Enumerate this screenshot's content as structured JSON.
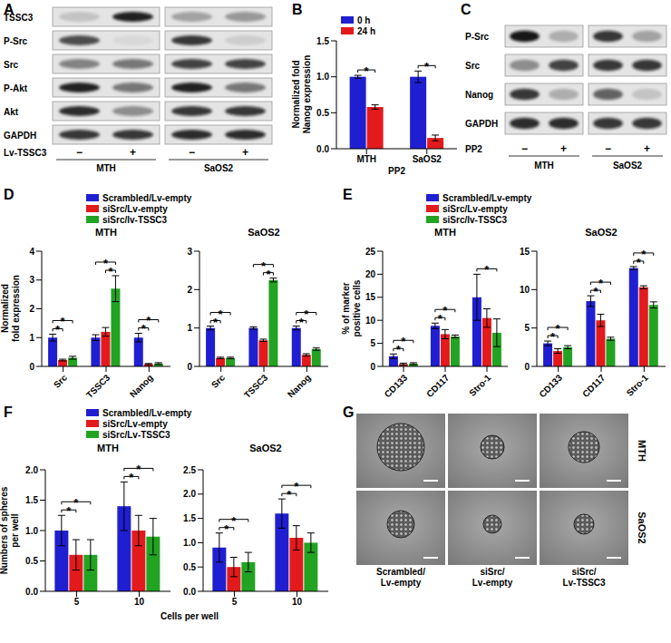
{
  "blots": [
    {
      "panel": "A",
      "rows": [
        "TSSC3",
        "P-Src",
        "Src",
        "P-Akt",
        "Akt",
        "GAPDH"
      ],
      "treatment": "Lv-TSSC3",
      "lanes": [
        "−",
        "+",
        "−",
        "+"
      ],
      "groups": [
        "MTH",
        "SaOS2"
      ],
      "band_intensity": [
        [
          0.15,
          0.9,
          0.3,
          0.35
        ],
        [
          0.7,
          0.05,
          0.8,
          0.1
        ],
        [
          0.45,
          0.5,
          0.75,
          0.75
        ],
        [
          0.9,
          0.5,
          0.9,
          0.5
        ],
        [
          0.85,
          0.4,
          0.8,
          0.8
        ],
        [
          0.8,
          0.8,
          0.85,
          0.85
        ]
      ]
    },
    {
      "panel": "C",
      "rows": [
        "P-Src",
        "Src",
        "Nanog",
        "GAPDH"
      ],
      "treatment": "PP2",
      "lanes": [
        "−",
        "+",
        "−",
        "+"
      ],
      "groups": [
        "MTH",
        "SaOS2"
      ],
      "band_intensity": [
        [
          0.95,
          0.25,
          0.8,
          0.3
        ],
        [
          0.4,
          0.75,
          0.8,
          0.8
        ],
        [
          0.8,
          0.25,
          0.6,
          0.15
        ],
        [
          0.85,
          0.85,
          0.8,
          0.8
        ]
      ]
    }
  ],
  "chart_data": [
    {
      "type": "bar",
      "panel": "B",
      "categories": [
        "MTH",
        "SaOS2"
      ],
      "x_label": "PP2",
      "y_label": [
        "Normalized fold",
        "Nanog expression"
      ],
      "series": [
        {
          "name": "0 h",
          "color": "#1f1fd1",
          "values": [
            1,
            1
          ],
          "errors": [
            0.02,
            0.08
          ]
        },
        {
          "name": "24 h",
          "color": "#e31a1c",
          "values": [
            0.58,
            0.15
          ],
          "errors": [
            0.03,
            0.04
          ]
        }
      ],
      "ylim": [
        0,
        1.5
      ],
      "yticks": [
        {
          "value": 0,
          "label": "0.0"
        },
        0.5,
        {
          "value": 1,
          "label": "1.0"
        },
        1.5
      ],
      "legend": "top-left",
      "significance": [
        {
          "category": 0,
          "from": 0,
          "to": 1,
          "label": "*"
        },
        {
          "category": 1,
          "from": 0,
          "to": 1,
          "label": "*"
        }
      ]
    },
    {
      "type": "bar",
      "panel": "D",
      "title": "MTH",
      "categories": [
        "Src",
        "TSSC3",
        "Nanog"
      ],
      "y_label": [
        "Normalized",
        "fold expression"
      ],
      "series": [
        {
          "name": "Scrambled/Lv-empty",
          "color": "#1f1fd1",
          "values": [
            1,
            1,
            1
          ],
          "errors": [
            0.12,
            0.1,
            0.15
          ]
        },
        {
          "name": "siSrc/Lv-empty",
          "color": "#e31a1c",
          "values": [
            0.22,
            1.2,
            0.08
          ],
          "errors": [
            0.03,
            0.15,
            0.02
          ]
        },
        {
          "name": "siSrc/lv-TSSC3",
          "color": "#22a322",
          "values": [
            0.3,
            2.7,
            0.1
          ],
          "errors": [
            0.05,
            0.45,
            0.03
          ]
        }
      ],
      "ylim": [
        0,
        4
      ],
      "yticks": [
        0,
        1,
        2,
        3,
        4
      ],
      "legend": "top",
      "significance": [
        {
          "category": 0,
          "from": 0,
          "to": 1,
          "label": "*"
        },
        {
          "category": 0,
          "from": 0,
          "to": 2,
          "label": "*"
        },
        {
          "category": 1,
          "from": 1,
          "to": 2,
          "label": "*"
        },
        {
          "category": 1,
          "from": 0,
          "to": 2,
          "label": "*"
        },
        {
          "category": 2,
          "from": 0,
          "to": 1,
          "label": "*"
        },
        {
          "category": 2,
          "from": 0,
          "to": 2,
          "label": "*"
        }
      ]
    },
    {
      "type": "bar",
      "panel": "D",
      "title": "SaOS2",
      "categories": [
        "Src",
        "TSSC3",
        "Nanog"
      ],
      "series": [
        {
          "name": "Scrambled/Lv-empty",
          "color": "#1f1fd1",
          "values": [
            1,
            1,
            1
          ],
          "errors": [
            0.05,
            0.03,
            0.05
          ]
        },
        {
          "name": "siSrc/Lv-empty",
          "color": "#e31a1c",
          "values": [
            0.22,
            0.68,
            0.3
          ],
          "errors": [
            0.02,
            0.03,
            0.03
          ]
        },
        {
          "name": "siSrc/lv-TSSC3",
          "color": "#22a322",
          "values": [
            0.22,
            2.25,
            0.45
          ],
          "errors": [
            0.02,
            0.05,
            0.03
          ]
        }
      ],
      "ylim": [
        0,
        3
      ],
      "yticks": [
        0,
        1,
        2,
        3
      ],
      "significance": [
        {
          "category": 0,
          "from": 0,
          "to": 1,
          "label": "*"
        },
        {
          "category": 0,
          "from": 0,
          "to": 2,
          "label": "*"
        },
        {
          "category": 1,
          "from": 1,
          "to": 2,
          "label": "*"
        },
        {
          "category": 1,
          "from": 0,
          "to": 2,
          "label": "*"
        },
        {
          "category": 2,
          "from": 0,
          "to": 1,
          "label": "*"
        },
        {
          "category": 2,
          "from": 0,
          "to": 2,
          "label": "*"
        }
      ]
    },
    {
      "type": "bar",
      "panel": "E",
      "title": "MTH",
      "categories": [
        "CD133",
        "CD117",
        "Stro-1"
      ],
      "y_label": [
        "% of marker",
        "positive cells"
      ],
      "series": [
        {
          "name": "Scrambled/Lv-empty",
          "color": "#1f1fd1",
          "values": [
            2.2,
            8.8,
            15
          ],
          "errors": [
            0.5,
            0.6,
            5
          ]
        },
        {
          "name": "siSrc/Lv-empty",
          "color": "#e31a1c",
          "values": [
            0.5,
            7,
            10.5
          ],
          "errors": [
            0.2,
            1,
            2
          ]
        },
        {
          "name": "siSrc/lv-TSSC3",
          "color": "#22a322",
          "values": [
            0.6,
            6.5,
            7.3
          ],
          "errors": [
            0.2,
            0.3,
            3
          ]
        }
      ],
      "ylim": [
        0,
        25
      ],
      "yticks": [
        0,
        5,
        10,
        15,
        20,
        25
      ],
      "legend": "top",
      "significance": [
        {
          "category": 0,
          "from": 0,
          "to": 1,
          "label": "*"
        },
        {
          "category": 0,
          "from": 0,
          "to": 2,
          "label": "*"
        },
        {
          "category": 1,
          "from": 0,
          "to": 1,
          "label": "*"
        },
        {
          "category": 1,
          "from": 0,
          "to": 2,
          "label": "*"
        },
        {
          "category": 2,
          "from": 0,
          "to": 2,
          "label": "*"
        }
      ]
    },
    {
      "type": "bar",
      "panel": "E",
      "title": "SaOS2",
      "categories": [
        "CD133",
        "CD117",
        "Stro-1"
      ],
      "series": [
        {
          "name": "Scrambled/Lv-empty",
          "color": "#1f1fd1",
          "values": [
            3,
            8.5,
            12.8
          ],
          "errors": [
            0.3,
            0.7,
            0.2
          ]
        },
        {
          "name": "siSrc/Lv-empty",
          "color": "#e31a1c",
          "values": [
            2,
            6,
            10.3
          ],
          "errors": [
            0.3,
            0.8,
            0.2
          ]
        },
        {
          "name": "siSrc/lv-TSSC3",
          "color": "#22a322",
          "values": [
            2.5,
            3.6,
            8
          ],
          "errors": [
            0.2,
            0.2,
            0.4
          ]
        }
      ],
      "ylim": [
        0,
        15
      ],
      "yticks": [
        0,
        5,
        10,
        15
      ],
      "significance": [
        {
          "category": 0,
          "from": 0,
          "to": 1,
          "label": "*"
        },
        {
          "category": 0,
          "from": 0,
          "to": 2,
          "label": "*"
        },
        {
          "category": 1,
          "from": 0,
          "to": 1,
          "label": "*"
        },
        {
          "category": 1,
          "from": 0,
          "to": 2,
          "label": "*"
        },
        {
          "category": 2,
          "from": 0,
          "to": 1,
          "label": "*"
        },
        {
          "category": 2,
          "from": 0,
          "to": 2,
          "label": "*"
        }
      ]
    },
    {
      "type": "bar",
      "panel": "F",
      "title": "MTH",
      "categories": [
        "5",
        "10"
      ],
      "x_label": "Cells per well",
      "y_label": [
        "Numbers of spheres",
        "per well"
      ],
      "series": [
        {
          "name": "Scrambled/Lv-empty",
          "color": "#1f1fd1",
          "values": [
            1,
            1.4
          ],
          "errors": [
            0.25,
            0.4
          ]
        },
        {
          "name": "siSrc/Lv-empty",
          "color": "#e31a1c",
          "values": [
            0.6,
            1
          ],
          "errors": [
            0.25,
            0.25
          ]
        },
        {
          "name": "siSrc/Lv-TSSC3",
          "color": "#22a322",
          "values": [
            0.6,
            0.9
          ],
          "errors": [
            0.25,
            0.3
          ]
        }
      ],
      "ylim": [
        0,
        2
      ],
      "yticks": [
        {
          "value": 0,
          "label": "0.0"
        },
        0.5,
        {
          "value": 1,
          "label": "1.0"
        },
        1.5,
        {
          "value": 2,
          "label": "2.0"
        }
      ],
      "legend": "top",
      "significance": [
        {
          "category": 0,
          "from": 0,
          "to": 1,
          "label": "*"
        },
        {
          "category": 0,
          "from": 0,
          "to": 2,
          "label": "*"
        },
        {
          "category": 1,
          "from": 0,
          "to": 1,
          "label": "*"
        },
        {
          "category": 1,
          "from": 0,
          "to": 2,
          "label": "*"
        }
      ]
    },
    {
      "type": "bar",
      "panel": "F",
      "title": "SaOS2",
      "categories": [
        "5",
        "10"
      ],
      "series": [
        {
          "name": "Scrambled/Lv-empty",
          "color": "#1f1fd1",
          "values": [
            0.9,
            1.6
          ],
          "errors": [
            0.3,
            0.3
          ]
        },
        {
          "name": "siSrc/Lv-empty",
          "color": "#e31a1c",
          "values": [
            0.5,
            1.1
          ],
          "errors": [
            0.2,
            0.25
          ]
        },
        {
          "name": "siSrc/Lv-TSSC3",
          "color": "#22a322",
          "values": [
            0.6,
            1
          ],
          "errors": [
            0.2,
            0.2
          ]
        }
      ],
      "ylim": [
        0,
        2.5
      ],
      "yticks": [
        {
          "value": 0,
          "label": "0.0"
        },
        0.5,
        {
          "value": 1,
          "label": "1.0"
        },
        1.5,
        {
          "value": 2,
          "label": "2.0"
        },
        2.5
      ],
      "significance": [
        {
          "category": 0,
          "from": 0,
          "to": 1,
          "label": "*"
        },
        {
          "category": 0,
          "from": 0,
          "to": 2,
          "label": "*"
        },
        {
          "category": 1,
          "from": 0,
          "to": 1,
          "label": "*"
        },
        {
          "category": 1,
          "from": 0,
          "to": 2,
          "label": "*"
        }
      ]
    }
  ],
  "images": {
    "panel": "G",
    "rows": [
      "MTH",
      "SaOS2"
    ],
    "columns": [
      [
        "Scrambled/",
        "Lv-empty"
      ],
      [
        "siSrc/",
        "Lv-empty"
      ],
      [
        "siSrc/",
        "Lv-TSSC3"
      ]
    ]
  }
}
